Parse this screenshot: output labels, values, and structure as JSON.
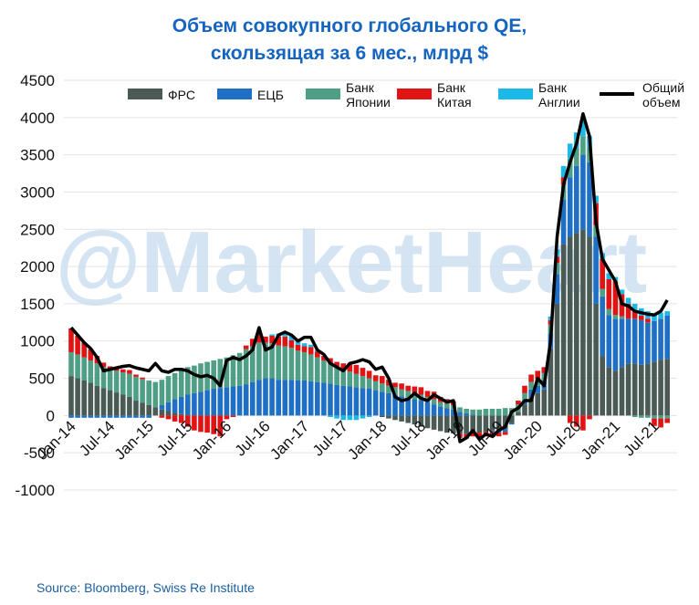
{
  "chart_data": {
    "type": "bar",
    "stacked": true,
    "title": "Объем совокупного глобального QE, скользящая за 6 мес., млрд $",
    "watermark": "@MarketHeart",
    "source": "Source: Bloomberg, Swiss Re Institute",
    "categories": [
      "Jan-14",
      null,
      null,
      null,
      null,
      null,
      "Jul-14",
      null,
      null,
      null,
      null,
      null,
      "Jan-15",
      null,
      null,
      null,
      null,
      null,
      "Jul-15",
      null,
      null,
      null,
      null,
      null,
      "Jan-16",
      null,
      null,
      null,
      null,
      null,
      "Jul-16",
      null,
      null,
      null,
      null,
      null,
      "Jan-17",
      null,
      null,
      null,
      null,
      null,
      "Jul-17",
      null,
      null,
      null,
      null,
      null,
      "Jan-18",
      null,
      null,
      null,
      null,
      null,
      "Jul-18",
      null,
      null,
      null,
      null,
      null,
      "Jan-19",
      null,
      null,
      null,
      null,
      null,
      "Jul-19",
      null,
      null,
      null,
      null,
      null,
      "Jan-20",
      null,
      null,
      null,
      null,
      null,
      "Jul-20",
      null,
      null,
      null,
      null,
      null,
      "Jan-21",
      null,
      null,
      null,
      null,
      null,
      "Jul-21",
      null,
      null
    ],
    "ylim": [
      -1000,
      4500
    ],
    "yticks": [
      -1000,
      -500,
      0,
      500,
      1000,
      1500,
      2000,
      2500,
      3000,
      3500,
      4000,
      4500
    ],
    "grid": true,
    "series": [
      {
        "name": "ФРС",
        "color": "#4a5b55",
        "values": [
          530,
          500,
          470,
          440,
          400,
          370,
          340,
          310,
          280,
          250,
          200,
          170,
          140,
          110,
          80,
          60,
          40,
          20,
          10,
          0,
          0,
          0,
          0,
          0,
          0,
          0,
          0,
          0,
          0,
          0,
          0,
          0,
          0,
          0,
          0,
          0,
          0,
          0,
          0,
          0,
          0,
          0,
          0,
          0,
          0,
          0,
          0,
          0,
          -20,
          -40,
          -60,
          -80,
          -100,
          -120,
          -150,
          -170,
          -190,
          -210,
          -230,
          -240,
          -250,
          -250,
          -240,
          -230,
          -220,
          -200,
          -200,
          -180,
          -100,
          50,
          150,
          250,
          300,
          350,
          900,
          1500,
          2300,
          2400,
          2450,
          2500,
          2400,
          1500,
          800,
          650,
          600,
          650,
          700,
          700,
          680,
          700,
          720,
          750,
          760
        ]
      },
      {
        "name": "ЕЦБ",
        "color": "#1f6fc5",
        "values": [
          -30,
          -30,
          -30,
          -30,
          -30,
          -30,
          -30,
          -30,
          -30,
          -30,
          -30,
          -30,
          -30,
          0,
          60,
          120,
          180,
          230,
          270,
          300,
          320,
          340,
          360,
          370,
          380,
          390,
          400,
          420,
          450,
          480,
          500,
          500,
          480,
          480,
          480,
          470,
          470,
          460,
          450,
          440,
          430,
          410,
          400,
          390,
          380,
          370,
          360,
          340,
          320,
          300,
          280,
          260,
          240,
          220,
          200,
          180,
          150,
          120,
          100,
          80,
          50,
          30,
          10,
          0,
          0,
          -20,
          -30,
          -40,
          -20,
          0,
          50,
          100,
          100,
          120,
          200,
          400,
          600,
          800,
          900,
          1000,
          1000,
          900,
          800,
          700,
          700,
          650,
          600,
          600,
          600,
          550,
          550,
          550,
          580
        ]
      },
      {
        "name": "Банк Японии",
        "color": "#4f9e86",
        "values": [
          320,
          320,
          310,
          300,
          300,
          280,
          280,
          290,
          300,
          310,
          320,
          320,
          330,
          340,
          340,
          350,
          350,
          360,
          370,
          370,
          380,
          380,
          380,
          390,
          400,
          420,
          440,
          470,
          480,
          500,
          480,
          470,
          460,
          450,
          430,
          400,
          380,
          360,
          330,
          300,
          270,
          250,
          220,
          200,
          180,
          160,
          140,
          120,
          110,
          100,
          100,
          90,
          90,
          80,
          80,
          70,
          70,
          60,
          60,
          60,
          60,
          60,
          70,
          80,
          90,
          90,
          90,
          100,
          100,
          100,
          100,
          100,
          100,
          100,
          120,
          150,
          200,
          250,
          250,
          250,
          200,
          150,
          100,
          80,
          50,
          30,
          0,
          -20,
          -30,
          -30,
          -40,
          -40,
          -40
        ]
      },
      {
        "name": "Банк Китая",
        "color": "#e01414",
        "values": [
          320,
          250,
          200,
          150,
          100,
          60,
          40,
          30,
          40,
          50,
          30,
          20,
          0,
          0,
          -30,
          -50,
          -80,
          -100,
          -150,
          -200,
          -220,
          -230,
          -250,
          -280,
          -50,
          -20,
          0,
          50,
          100,
          150,
          80,
          100,
          120,
          130,
          100,
          80,
          80,
          100,
          80,
          60,
          70,
          60,
          80,
          100,
          120,
          110,
          100,
          80,
          100,
          80,
          60,
          80,
          70,
          90,
          100,
          80,
          100,
          70,
          60,
          50,
          -50,
          -60,
          -40,
          -50,
          -60,
          -70,
          -50,
          -40,
          0,
          50,
          100,
          100,
          100,
          80,
          60,
          80,
          100,
          -100,
          -150,
          -200,
          -50,
          300,
          400,
          400,
          450,
          300,
          200,
          100,
          60,
          50,
          -100,
          -120,
          -60
        ]
      },
      {
        "name": "Банк Англии",
        "color": "#1cb8e8",
        "values": [
          0,
          0,
          0,
          0,
          0,
          0,
          0,
          0,
          0,
          0,
          0,
          0,
          0,
          0,
          0,
          0,
          0,
          0,
          0,
          0,
          0,
          0,
          0,
          0,
          0,
          0,
          0,
          0,
          0,
          0,
          0,
          20,
          40,
          60,
          60,
          60,
          40,
          30,
          20,
          0,
          -20,
          -40,
          -60,
          -60,
          -60,
          -40,
          -20,
          0,
          0,
          0,
          0,
          0,
          0,
          0,
          0,
          0,
          0,
          0,
          0,
          0,
          0,
          0,
          0,
          0,
          0,
          0,
          0,
          0,
          0,
          0,
          0,
          0,
          0,
          0,
          50,
          100,
          150,
          200,
          200,
          200,
          150,
          100,
          80,
          80,
          60,
          60,
          80,
          100,
          100,
          100,
          100,
          80,
          60
        ]
      },
      {
        "name": "Общий объем",
        "type": "line",
        "color": "#000000",
        "values": [
          1180,
          1080,
          980,
          900,
          780,
          600,
          620,
          640,
          660,
          670,
          640,
          620,
          600,
          700,
          600,
          580,
          620,
          620,
          600,
          550,
          520,
          540,
          500,
          400,
          740,
          780,
          750,
          800,
          880,
          1180,
          880,
          920,
          1080,
          1120,
          1080,
          1000,
          1050,
          1050,
          880,
          820,
          700,
          650,
          600,
          700,
          720,
          750,
          720,
          620,
          650,
          500,
          250,
          200,
          220,
          300,
          230,
          200,
          280,
          230,
          180,
          200,
          -350,
          -300,
          -200,
          -320,
          -250,
          -280,
          -200,
          -150,
          50,
          100,
          200,
          200,
          500,
          400,
          1000,
          2400,
          3100,
          3400,
          3650,
          4050,
          3750,
          2600,
          2100,
          1950,
          1800,
          1500,
          1470,
          1400,
          1380,
          1360,
          1350,
          1400,
          1550
        ]
      }
    ]
  }
}
